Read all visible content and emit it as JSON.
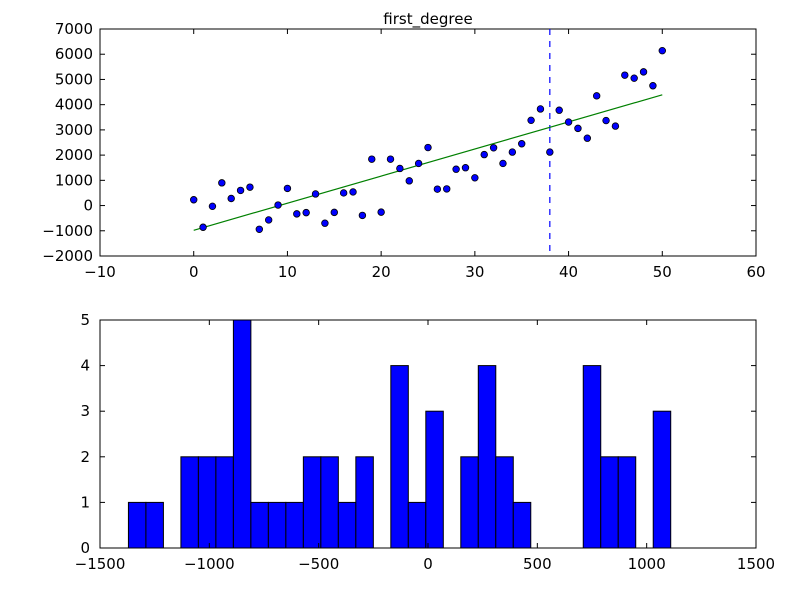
{
  "chart_data": [
    {
      "type": "scatter",
      "title": "first_degree",
      "xlim": [
        -10,
        60
      ],
      "ylim": [
        -2000,
        7000
      ],
      "xticks": [
        -10,
        0,
        10,
        20,
        30,
        40,
        50,
        60
      ],
      "yticks": [
        -2000,
        -1000,
        0,
        1000,
        2000,
        3000,
        4000,
        5000,
        6000,
        7000
      ],
      "xtick_labels": [
        "−10",
        "0",
        "10",
        "20",
        "30",
        "40",
        "50",
        "60"
      ],
      "ytick_labels": [
        "−2000",
        "−1000",
        "0",
        "1000",
        "2000",
        "3000",
        "4000",
        "5000",
        "6000",
        "7000"
      ],
      "x": [
        0,
        1,
        2,
        3,
        4,
        5,
        6,
        7,
        8,
        9,
        10,
        11,
        12,
        13,
        14,
        15,
        16,
        17,
        18,
        19,
        20,
        21,
        22,
        23,
        24,
        25,
        26,
        27,
        28,
        29,
        30,
        31,
        32,
        33,
        34,
        35,
        36,
        37,
        38,
        39,
        40,
        41,
        42,
        43,
        44,
        45,
        46,
        47,
        48,
        49,
        50
      ],
      "y": [
        230,
        -860,
        -30,
        900,
        280,
        600,
        730,
        -940,
        -570,
        20,
        680,
        -330,
        -280,
        460,
        -700,
        -270,
        500,
        540,
        -390,
        1840,
        -260,
        1840,
        1470,
        980,
        1670,
        2300,
        650,
        660,
        1440,
        1500,
        1100,
        2020,
        2290,
        1670,
        2120,
        2450,
        3380,
        3830,
        2120,
        3780,
        3310,
        3060,
        2670,
        4350,
        3370,
        3150,
        5170,
        5050,
        5300,
        4750,
        6140
      ],
      "fit_line": {
        "x": [
          0,
          50
        ],
        "y": [
          -980,
          4390
        ]
      },
      "vline_x": 38,
      "colors": {
        "points": "#0000ff",
        "fit": "#008000",
        "vline": "#0000ff"
      }
    },
    {
      "type": "bar",
      "subtype": "histogram",
      "xlim": [
        -1500,
        1500
      ],
      "ylim": [
        0,
        5
      ],
      "xticks": [
        -1500,
        -1000,
        -500,
        0,
        500,
        1000,
        1500
      ],
      "yticks": [
        0,
        1,
        2,
        3,
        4,
        5
      ],
      "xtick_labels": [
        "−1500",
        "−1000",
        "−500",
        "0",
        "500",
        "1000",
        "1500"
      ],
      "ytick_labels": [
        "0",
        "1",
        "2",
        "3",
        "4",
        "5"
      ],
      "bin_start": -1370,
      "bin_width": 80,
      "counts": [
        1,
        1,
        0,
        2,
        2,
        2,
        5,
        1,
        1,
        1,
        2,
        2,
        1,
        2,
        0,
        4,
        1,
        3,
        0,
        2,
        4,
        2,
        1,
        0,
        0,
        0,
        4,
        2,
        2,
        0,
        3
      ],
      "colors": {
        "bars": "#0000ff"
      }
    }
  ]
}
